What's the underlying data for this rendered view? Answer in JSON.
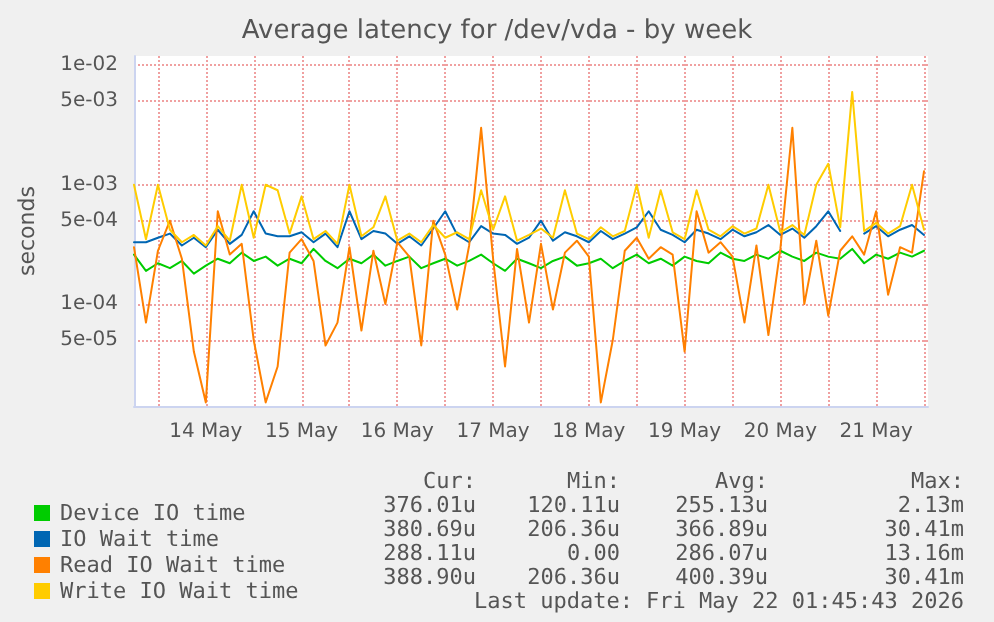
{
  "chart_data": {
    "type": "line",
    "title": "Average latency for /dev/vda - by week",
    "ylabel": "seconds",
    "log": "y",
    "grid": true,
    "legend": "bottom",
    "marker": "none",
    "line_style": "solid",
    "ylim": [
      1.4e-05,
      0.012
    ],
    "yticks": [
      {
        "value": 0.01,
        "label": "1e-02"
      },
      {
        "value": 0.005,
        "label": "5e-03"
      },
      {
        "value": 0.001,
        "label": "1e-03"
      },
      {
        "value": 0.0005,
        "label": "5e-04"
      },
      {
        "value": 0.0001,
        "label": "1e-04"
      },
      {
        "value": 5e-05,
        "label": "5e-05"
      }
    ],
    "xlim": [
      "2026-05-13T18:00",
      "2026-05-22T01:00"
    ],
    "xticks": [
      {
        "value": "2026-05-14T00:00",
        "label": null
      },
      {
        "value": "2026-05-14T12:00",
        "label": "14 May"
      },
      {
        "value": "2026-05-15T00:00",
        "label": null
      },
      {
        "value": "2026-05-15T12:00",
        "label": "15 May"
      },
      {
        "value": "2026-05-16T00:00",
        "label": null
      },
      {
        "value": "2026-05-16T12:00",
        "label": "16 May"
      },
      {
        "value": "2026-05-17T00:00",
        "label": null
      },
      {
        "value": "2026-05-17T12:00",
        "label": "17 May"
      },
      {
        "value": "2026-05-18T00:00",
        "label": null
      },
      {
        "value": "2026-05-18T12:00",
        "label": "18 May"
      },
      {
        "value": "2026-05-19T00:00",
        "label": null
      },
      {
        "value": "2026-05-19T12:00",
        "label": "19 May"
      },
      {
        "value": "2026-05-20T00:00",
        "label": null
      },
      {
        "value": "2026-05-20T12:00",
        "label": "20 May"
      },
      {
        "value": "2026-05-21T00:00",
        "label": null
      },
      {
        "value": "2026-05-21T12:00",
        "label": "21 May"
      },
      {
        "value": "2026-05-22T00:00",
        "label": null
      }
    ],
    "x": [
      "2026-05-13T18:00",
      "2026-05-13T21:00",
      "2026-05-14T00:00",
      "2026-05-14T03:00",
      "2026-05-14T06:00",
      "2026-05-14T09:00",
      "2026-05-14T12:00",
      "2026-05-14T15:00",
      "2026-05-14T18:00",
      "2026-05-14T21:00",
      "2026-05-15T00:00",
      "2026-05-15T03:00",
      "2026-05-15T06:00",
      "2026-05-15T09:00",
      "2026-05-15T12:00",
      "2026-05-15T15:00",
      "2026-05-15T18:00",
      "2026-05-15T21:00",
      "2026-05-16T00:00",
      "2026-05-16T03:00",
      "2026-05-16T06:00",
      "2026-05-16T09:00",
      "2026-05-16T12:00",
      "2026-05-16T15:00",
      "2026-05-16T18:00",
      "2026-05-16T21:00",
      "2026-05-17T00:00",
      "2026-05-17T03:00",
      "2026-05-17T06:00",
      "2026-05-17T09:00",
      "2026-05-17T12:00",
      "2026-05-17T15:00",
      "2026-05-17T18:00",
      "2026-05-17T21:00",
      "2026-05-18T00:00",
      "2026-05-18T03:00",
      "2026-05-18T06:00",
      "2026-05-18T09:00",
      "2026-05-18T12:00",
      "2026-05-18T15:00",
      "2026-05-18T18:00",
      "2026-05-18T21:00",
      "2026-05-19T00:00",
      "2026-05-19T03:00",
      "2026-05-19T06:00",
      "2026-05-19T09:00",
      "2026-05-19T12:00",
      "2026-05-19T15:00",
      "2026-05-19T18:00",
      "2026-05-19T21:00",
      "2026-05-20T00:00",
      "2026-05-20T03:00",
      "2026-05-20T06:00",
      "2026-05-20T09:00",
      "2026-05-20T12:00",
      "2026-05-20T15:00",
      "2026-05-20T18:00",
      "2026-05-20T21:00",
      "2026-05-21T00:00",
      "2026-05-21T03:00",
      "2026-05-21T06:00",
      "2026-05-21T09:00",
      "2026-05-21T12:00",
      "2026-05-21T15:00",
      "2026-05-21T18:00",
      "2026-05-21T21:00",
      "2026-05-22T00:00"
    ],
    "series": [
      {
        "name": "Device IO time",
        "color": "#00cc00",
        "values": [
          0.00026,
          0.00019,
          0.00022,
          0.0002,
          0.00023,
          0.00018,
          0.00021,
          0.00024,
          0.00022,
          0.00027,
          0.00023,
          0.00025,
          0.00021,
          0.00024,
          0.00022,
          0.00029,
          0.00023,
          0.0002,
          0.00024,
          0.00022,
          0.00026,
          0.00021,
          0.00023,
          0.00025,
          0.0002,
          0.00022,
          0.00024,
          0.00021,
          0.00023,
          0.00026,
          0.00022,
          0.00019,
          0.00024,
          0.00022,
          0.0002,
          0.00023,
          0.00025,
          0.00021,
          0.00022,
          0.00024,
          0.0002,
          0.00023,
          0.00026,
          0.00022,
          0.00024,
          0.00021,
          0.00025,
          0.00023,
          0.00022,
          0.00027,
          0.00024,
          0.00023,
          0.00026,
          0.00024,
          0.00028,
          0.00025,
          0.00023,
          0.00027,
          0.00025,
          0.00024,
          0.00029,
          0.00022,
          0.00026,
          0.00024,
          0.00027,
          0.00025,
          0.00028
        ]
      },
      {
        "name": "IO Wait time",
        "color": "#0066b3",
        "values": [
          0.00033,
          0.00033,
          0.00036,
          0.00039,
          0.00031,
          0.00036,
          0.0003,
          0.00042,
          0.00032,
          0.00038,
          0.0006,
          0.00039,
          0.00037,
          0.00037,
          0.0004,
          0.00033,
          0.00039,
          0.0003,
          0.0006,
          0.00035,
          0.00041,
          0.00039,
          0.00032,
          0.00037,
          0.00031,
          0.00043,
          0.0006,
          0.00038,
          0.00033,
          0.00045,
          0.00039,
          0.00038,
          0.00032,
          0.00036,
          0.0005,
          0.00034,
          0.0004,
          0.00037,
          0.00033,
          0.00041,
          0.00035,
          0.00039,
          0.00044,
          0.0006,
          0.00042,
          0.00038,
          0.00033,
          0.00042,
          0.00039,
          0.00035,
          0.00042,
          0.00037,
          0.0004,
          0.00046,
          0.00038,
          0.00043,
          0.00036,
          0.00045,
          0.0006,
          0.00041,
          null,
          0.00039,
          0.00045,
          0.00037,
          0.00042,
          0.00046,
          0.00038
        ]
      },
      {
        "name": "Read IO Wait time",
        "color": "#ff8000",
        "values": [
          0.0003,
          7e-05,
          0.00028,
          0.0005,
          0.00024,
          4e-05,
          1.5e-05,
          0.0006,
          0.00026,
          0.00032,
          5e-05,
          1.5e-05,
          3e-05,
          0.00027,
          0.00035,
          0.00023,
          4.5e-05,
          7e-05,
          0.0003,
          6e-05,
          0.00028,
          0.0001,
          0.00033,
          0.00025,
          4.5e-05,
          0.0005,
          0.00026,
          9e-05,
          0.00031,
          0.003,
          0.00024,
          3e-05,
          0.00029,
          7e-05,
          0.00032,
          9e-05,
          0.00027,
          0.00034,
          0.00025,
          1.5e-05,
          5e-05,
          0.00028,
          0.00036,
          0.00024,
          0.0003,
          0.00026,
          4e-05,
          0.0006,
          0.00027,
          0.00033,
          0.00025,
          7e-05,
          0.00031,
          5.5e-05,
          0.00029,
          0.003,
          0.0001,
          0.00034,
          8e-05,
          0.00028,
          0.00037,
          0.00026,
          0.0006,
          0.00012,
          0.0003,
          0.00027,
          0.0013
        ]
      },
      {
        "name": "Write IO Wait time",
        "color": "#ffcc00",
        "values": [
          0.001,
          0.00035,
          0.001,
          0.00042,
          0.00033,
          0.00038,
          0.00031,
          0.00045,
          0.00034,
          0.001,
          0.00036,
          0.001,
          0.0009,
          0.00039,
          0.0008,
          0.00035,
          0.00041,
          0.00032,
          0.001,
          0.00037,
          0.00044,
          0.0008,
          0.00034,
          0.00039,
          0.00033,
          0.00046,
          0.00036,
          0.0004,
          0.00035,
          0.0009,
          0.00042,
          0.0008,
          0.00034,
          0.00038,
          0.00043,
          0.00036,
          0.0009,
          0.00039,
          0.00035,
          0.00044,
          0.00037,
          0.00041,
          0.001,
          0.00036,
          0.0009,
          0.0004,
          0.00035,
          0.0009,
          0.00042,
          0.00037,
          0.00045,
          0.00039,
          0.00043,
          0.001,
          0.0004,
          0.00046,
          0.00038,
          0.001,
          0.0015,
          0.00044,
          0.006,
          0.00041,
          0.00048,
          0.00039,
          0.00045,
          0.001,
          0.00042
        ]
      }
    ],
    "annotations": [
      "Cur:",
      "Min:",
      "Avg:",
      "Max:",
      "376.01u",
      "120.11u",
      "255.13u",
      "2.13m",
      "380.69u",
      "206.36u",
      "366.89u",
      "30.41m",
      "288.11u",
      "0.00",
      "286.07u",
      "13.16m",
      "388.90u",
      "206.36u",
      "400.39u",
      "30.41m",
      "Last update: Fri May 22 01:45:43 2026"
    ]
  }
}
